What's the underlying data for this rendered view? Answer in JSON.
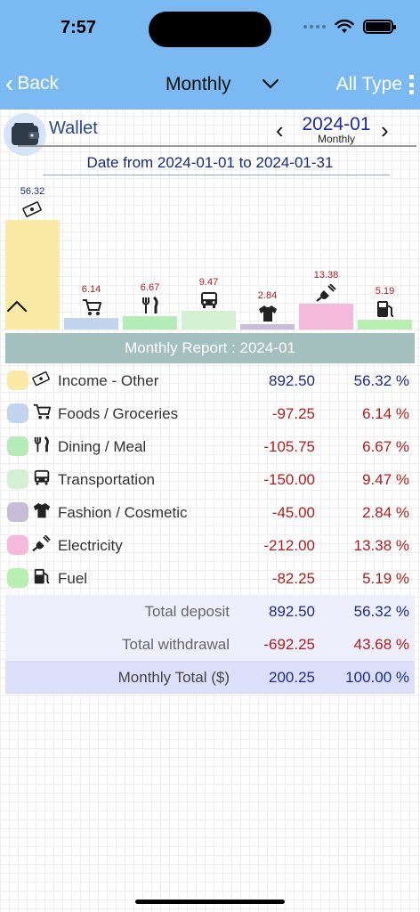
{
  "status": {
    "time": "7:57"
  },
  "nav": {
    "back_label": "Back",
    "title": "Monthly",
    "filter_label": "All Type"
  },
  "wallet": {
    "name": "Wallet",
    "period": "2024-01",
    "period_type": "Monthly"
  },
  "date_range": "Date from 2024-01-01 to 2024-01-31",
  "chart_data": {
    "type": "bar",
    "categories": [
      "Income - Other",
      "Foods / Groceries",
      "Dining / Meal",
      "Transportation",
      "Fashion / Cosmetic",
      "Electricity",
      "Fuel"
    ],
    "values": [
      56.32,
      6.14,
      6.67,
      9.47,
      2.84,
      13.38,
      5.19
    ],
    "labels": [
      "56.32",
      "6.14",
      "6.67",
      "9.47",
      "2.84",
      "13.38",
      "5.19"
    ],
    "colors": [
      "#fbe9a6",
      "#c3d4ee",
      "#b4ebb6",
      "#d3f0d3",
      "#c8bdd8",
      "#f5b9db",
      "#b7f0b1"
    ],
    "label_colors": [
      "#1e2a8a",
      "#b01c1c",
      "#b01c1c",
      "#b01c1c",
      "#b01c1c",
      "#b01c1c",
      "#b01c1c"
    ],
    "icons": [
      "money-icon",
      "cart-icon",
      "fork-knife-icon",
      "bus-icon",
      "shirt-icon",
      "plug-icon",
      "fuel-pump-icon"
    ],
    "ylim": [
      0,
      56.32
    ]
  },
  "report": {
    "title": "Monthly Report : 2024-01",
    "rows": [
      {
        "name": "Income - Other",
        "amount": "892.50",
        "pct": "56.32 %",
        "sign": "pos"
      },
      {
        "name": "Foods / Groceries",
        "amount": "-97.25",
        "pct": "6.14 %",
        "sign": "neg"
      },
      {
        "name": "Dining / Meal",
        "amount": "-105.75",
        "pct": "6.67 %",
        "sign": "neg"
      },
      {
        "name": "Transportation",
        "amount": "-150.00",
        "pct": "9.47 %",
        "sign": "neg"
      },
      {
        "name": "Fashion / Cosmetic",
        "amount": "-45.00",
        "pct": "2.84 %",
        "sign": "neg"
      },
      {
        "name": "Electricity",
        "amount": "-212.00",
        "pct": "13.38 %",
        "sign": "neg"
      },
      {
        "name": "Fuel",
        "amount": "-82.25",
        "pct": "5.19 %",
        "sign": "neg"
      }
    ],
    "total_deposit": {
      "label": "Total deposit",
      "amount": "892.50",
      "pct": "56.32 %"
    },
    "total_withdrawal": {
      "label": "Total withdrawal",
      "amount": "-692.25",
      "pct": "43.68 %"
    },
    "monthly_total": {
      "label": "Monthly Total ($)",
      "amount": "200.25",
      "pct": "100.00 %"
    }
  }
}
